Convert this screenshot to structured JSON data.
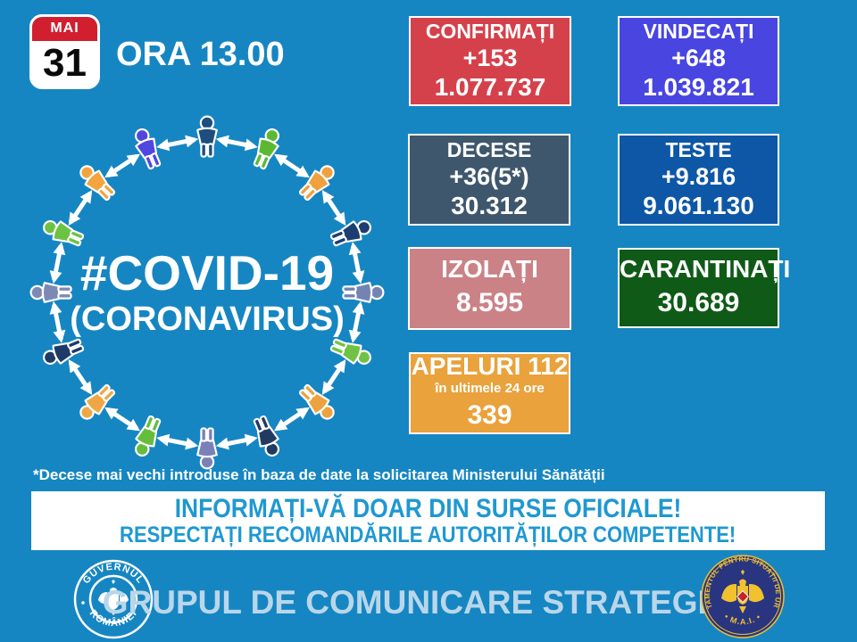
{
  "theme": {
    "background": "#1686c2",
    "banner_bg": "#ffffff",
    "banner_text_color": "#1f98d1",
    "footer_text_color": "#b9d6ea",
    "calendar_red": "#d11f30",
    "arrow_color": "#ffffff"
  },
  "header": {
    "calendar": {
      "month": "MAI",
      "day": "31"
    },
    "time_label": "ORA 13.00"
  },
  "graphic": {
    "title": "#COVID-19",
    "subtitle": "(CORONAVIRUS)",
    "person_colors": [
      "#1e4e7d",
      "#5cb832",
      "#f0a03c",
      "#1d3e70",
      "#7383b4",
      "#70c243",
      "#eca33f",
      "#223a61",
      "#7b80b8",
      "#66bd3c",
      "#efa746",
      "#1e3a68",
      "#7e88b4",
      "#6cc342",
      "#f2a53e",
      "#5146e0"
    ]
  },
  "stats": {
    "confirmati": {
      "label": "CONFIRMAȚI",
      "delta": "+153",
      "total": "1.077.737",
      "color": "#d5414b"
    },
    "vindecati": {
      "label": "VINDECAȚI",
      "delta": "+648",
      "total": "1.039.821",
      "color": "#4845e0"
    },
    "decese": {
      "label": "DECESE",
      "delta": "+36(5*)",
      "total": "30.312",
      "color": "#3f576d"
    },
    "teste": {
      "label": "TESTE",
      "delta": "+9.816",
      "total": "9.061.130",
      "color": "#0d57a6"
    },
    "izolati": {
      "label": "IZOLAȚI",
      "total": "8.595",
      "color": "#ca8287"
    },
    "carantinati": {
      "label": "CARANTINAȚI",
      "total": "30.689",
      "color": "#0f5a17"
    },
    "apeluri": {
      "label": "APELURI 112",
      "sublabel": "în ultimele 24 ore",
      "total": "339",
      "color": "#e9a23c"
    }
  },
  "footnote": "*Decese mai vechi introduse în baza de date la solicitarea Ministerului Sănătății",
  "banner": {
    "line1": "INFORMAȚI-VĂ DOAR DIN SURSE OFICIALE!",
    "line2": "RESPECTAȚI RECOMANDĂRILE AUTORITĂȚILOR COMPETENTE!"
  },
  "footer": {
    "gov_logo": {
      "top": "GUVERNUL",
      "bottom": "ROMÂNIEI"
    },
    "dsu_logo": {
      "ring": "DEPARTAMENTUL PENTRU SITUAȚII DE URGENȚĂ",
      "bottom": "• M.A.I. •"
    },
    "title": "GRUPUL DE COMUNICARE STRATEGICĂ"
  }
}
